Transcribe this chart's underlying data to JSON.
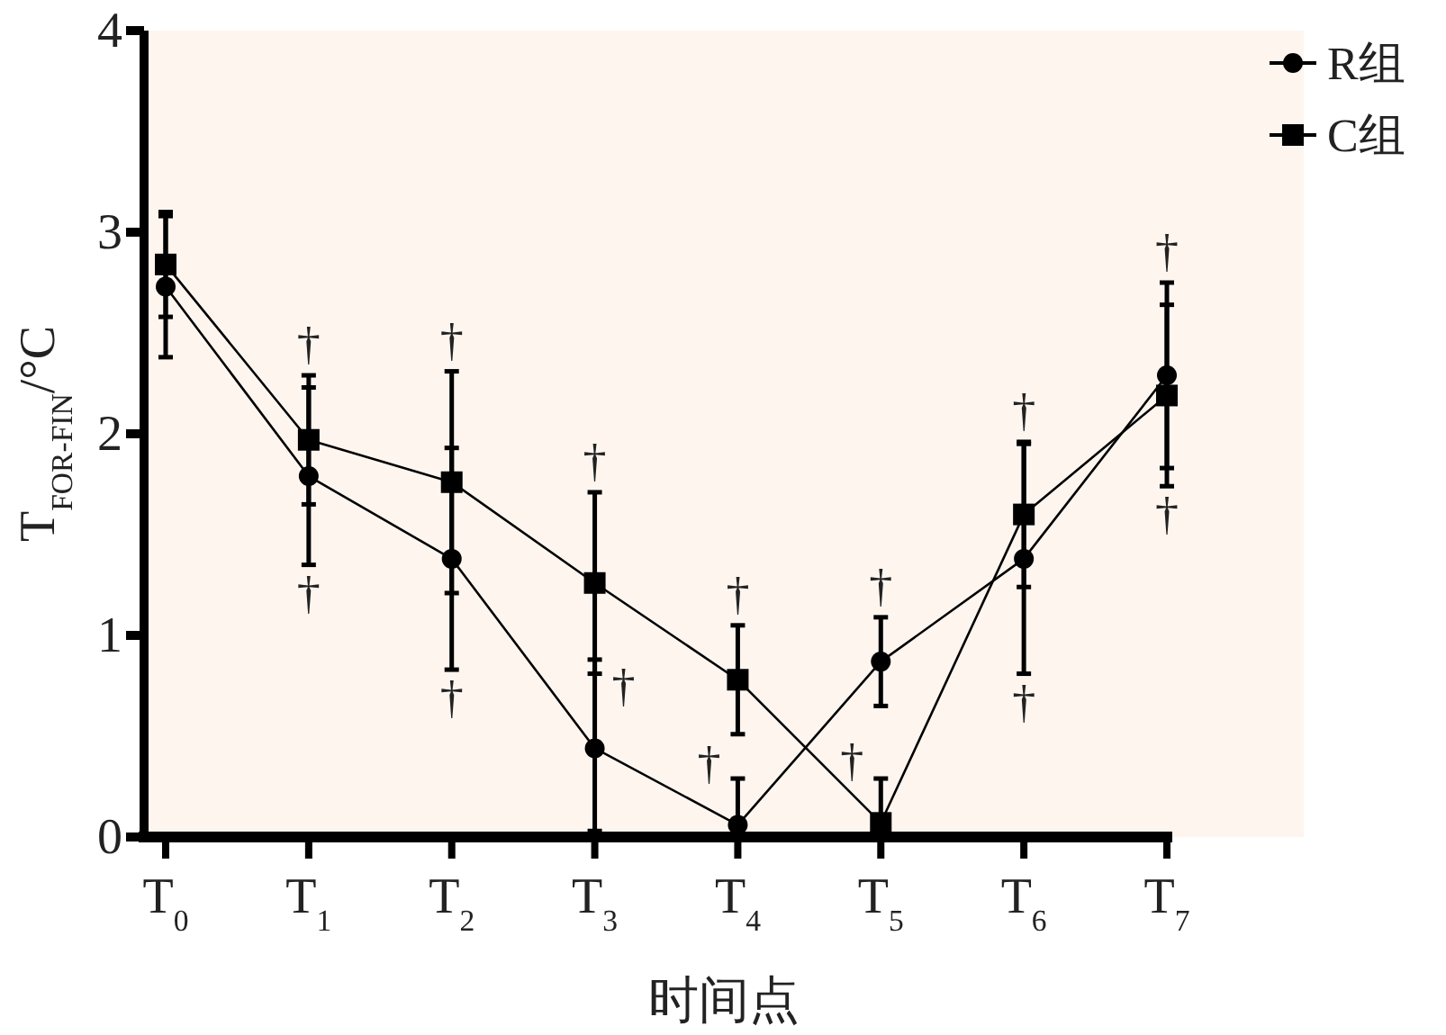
{
  "chart_data": {
    "type": "line",
    "xlabel": "时间点",
    "ylabel": "T$_{FOR-FIN}$/°C",
    "categories": [
      "T$_{0}$",
      "T$_{1}$",
      "T$_{2}$",
      "T$_{3}$",
      "T$_{4}$",
      "T$_{5}$",
      "T$_{6}$",
      "T$_{7}$"
    ],
    "series": [
      {
        "name": "R组",
        "color": "#000000",
        "marker": "circle",
        "values": [
          2.73,
          1.79,
          1.38,
          0.44,
          0.06,
          0.87,
          1.38,
          2.29
        ],
        "errors": [
          0.35,
          0.44,
          0.55,
          [
            0.03,
            0.88
          ],
          [
            0.06,
            0.29
          ],
          0.22,
          0.57,
          0.46
        ]
      },
      {
        "name": "C组",
        "color": "#000000",
        "marker": "square",
        "values": [
          2.84,
          1.97,
          1.76,
          1.26,
          0.78,
          0.07,
          1.6,
          2.19
        ],
        "errors": [
          0.26,
          0.32,
          0.55,
          0.45,
          0.27,
          [
            0.07,
            0.29
          ],
          0.36,
          0.45
        ]
      }
    ],
    "ylim": [
      0,
      4
    ],
    "yticks": [
      0,
      1,
      2,
      3,
      4
    ],
    "legend": "top right",
    "line_style": "solid",
    "annotations": [
      {
        "text": "†",
        "x": "T$_{1}$",
        "y": 2.29
      },
      {
        "text": "†",
        "x": "T$_{1}$",
        "y": 1.35
      },
      {
        "text": "†",
        "x": "T$_{2}$",
        "y": 2.31
      },
      {
        "text": "†",
        "x": "T$_{2}$",
        "y": 0.83
      },
      {
        "text": "†",
        "x": "T$_{3}$",
        "y": 1.71
      },
      {
        "text": "†",
        "x": "T$_{3}$",
        "y": 0.44
      },
      {
        "text": "†",
        "x": "T$_{4}$",
        "y": 1.05
      },
      {
        "text": "†",
        "x": "T$_{4}$",
        "y": 0.06
      },
      {
        "text": "†",
        "x": "T$_{5}$",
        "y": 1.09
      },
      {
        "text": "†",
        "x": "T$_{5}$",
        "y": 0.07
      },
      {
        "text": "†",
        "x": "T$_{6}$",
        "y": 1.96
      },
      {
        "text": "†",
        "x": "T$_{6}$",
        "y": 0.81
      },
      {
        "text": "†",
        "x": "T$_{7}$",
        "y": 2.75
      },
      {
        "text": "†",
        "x": "T$_{7}$",
        "y": 1.74
      }
    ]
  }
}
